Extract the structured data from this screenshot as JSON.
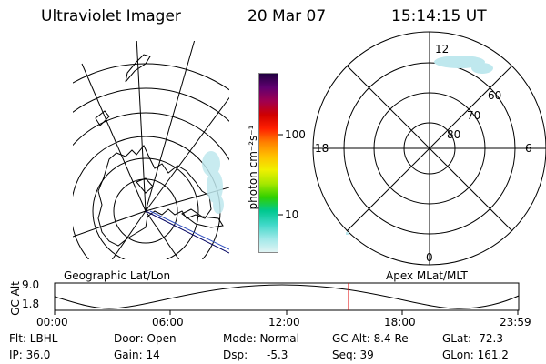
{
  "header": {
    "instrument": "Ultraviolet Imager",
    "date": "20 Mar 07",
    "time": "15:14:15 UT"
  },
  "colorbar": {
    "unit_label": "photon cm⁻²s⁻¹",
    "tick_100": "100",
    "tick_10": "10",
    "colors": [
      "#e0f4f4",
      "#9ee8e8",
      "#40d8c8",
      "#00c890",
      "#30d000",
      "#a8e800",
      "#f0f000",
      "#ffc000",
      "#ff8000",
      "#ff2000",
      "#d00000",
      "#a00050",
      "#600070",
      "#200040"
    ]
  },
  "polar_plot": {
    "mlt_12": "12",
    "mlt_18": "18",
    "mlt_6": "6",
    "mlt_0": "0",
    "lat_60": "60",
    "lat_70": "70",
    "lat_80": "80"
  },
  "timeline": {
    "left_label": "Geographic Lat/Lon",
    "right_label": "Apex MLat/MLT",
    "axis_title": "GC Alt",
    "y_top": "9.0",
    "y_bottom": "1.8",
    "ticks": [
      "00:00",
      "06:00",
      "12:00",
      "18:00",
      "23:59"
    ],
    "current_marker_color": "#e00000"
  },
  "info": {
    "filter": "Flt: LBHL",
    "ip": "IP: 36.0",
    "door": "Door: Open",
    "gain": "Gain: 14",
    "mode": "Mode: Normal",
    "dsp_label": "Dsp:",
    "dsp_value": "-5.3",
    "gc_alt": "GC Alt: 8.4 Re",
    "seq": "Seq: 39",
    "glat": "GLat: -72.3",
    "glon": "GLon: 161.2"
  }
}
